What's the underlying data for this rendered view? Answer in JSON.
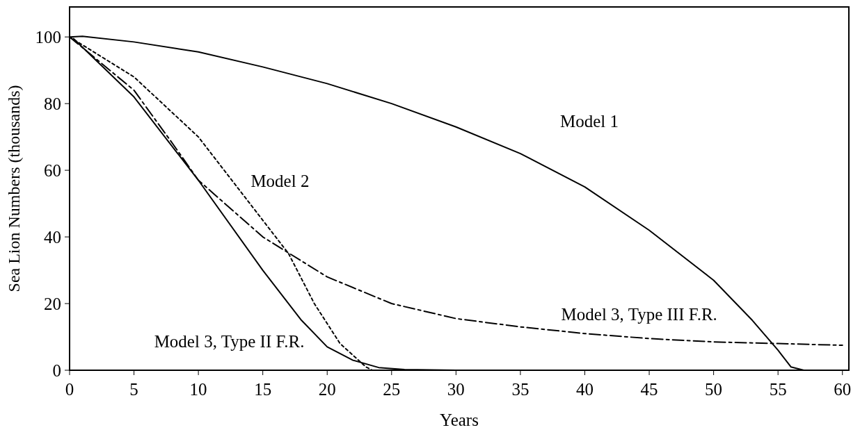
{
  "chart_data": {
    "type": "line",
    "xlabel": "Years",
    "ylabel": "Sea Lion Numbers (thousands)",
    "xlim": [
      0,
      60.5
    ],
    "ylim": [
      0,
      109
    ],
    "xticks": [
      0,
      5,
      10,
      15,
      20,
      25,
      30,
      35,
      40,
      45,
      50,
      55,
      60
    ],
    "yticks": [
      0,
      20,
      40,
      60,
      80,
      100
    ],
    "grid": false,
    "marker": "none",
    "series": [
      {
        "name": "Model 1",
        "color": "#000000",
        "line_style": "solid",
        "x": [
          0,
          1,
          5,
          10,
          15,
          20,
          25,
          30,
          35,
          40,
          45,
          50,
          53,
          55,
          56,
          57
        ],
        "values": [
          100,
          100.2,
          98.5,
          95.5,
          91,
          86,
          80,
          73,
          65,
          55,
          42,
          27,
          15,
          6,
          1,
          0
        ]
      },
      {
        "name": "Model 2",
        "color": "#000000",
        "line_style": "dotted",
        "x": [
          0,
          5,
          10,
          13,
          15,
          17,
          19,
          21,
          23,
          23.5
        ],
        "values": [
          100,
          88,
          70,
          55,
          45,
          35,
          20,
          8,
          1,
          0
        ]
      },
      {
        "name": "Model 3, Type III F.R.",
        "color": "#000000",
        "line_style": "dashed",
        "x": [
          0,
          5,
          8,
          10,
          15,
          20,
          25,
          30,
          35,
          40,
          45,
          50,
          55,
          60
        ],
        "values": [
          100,
          84,
          68,
          57,
          40,
          28,
          20,
          15.5,
          13,
          11,
          9.5,
          8.5,
          8,
          7.5
        ]
      },
      {
        "name": "Model 3, Type II F.R.",
        "color": "#000000",
        "line_style": "solid",
        "x": [
          0.3,
          5,
          10,
          15,
          18,
          20,
          22,
          24,
          26,
          30
        ],
        "values": [
          99.5,
          82,
          57,
          30,
          15,
          7,
          3,
          0.8,
          0.2,
          0
        ]
      }
    ]
  }
}
